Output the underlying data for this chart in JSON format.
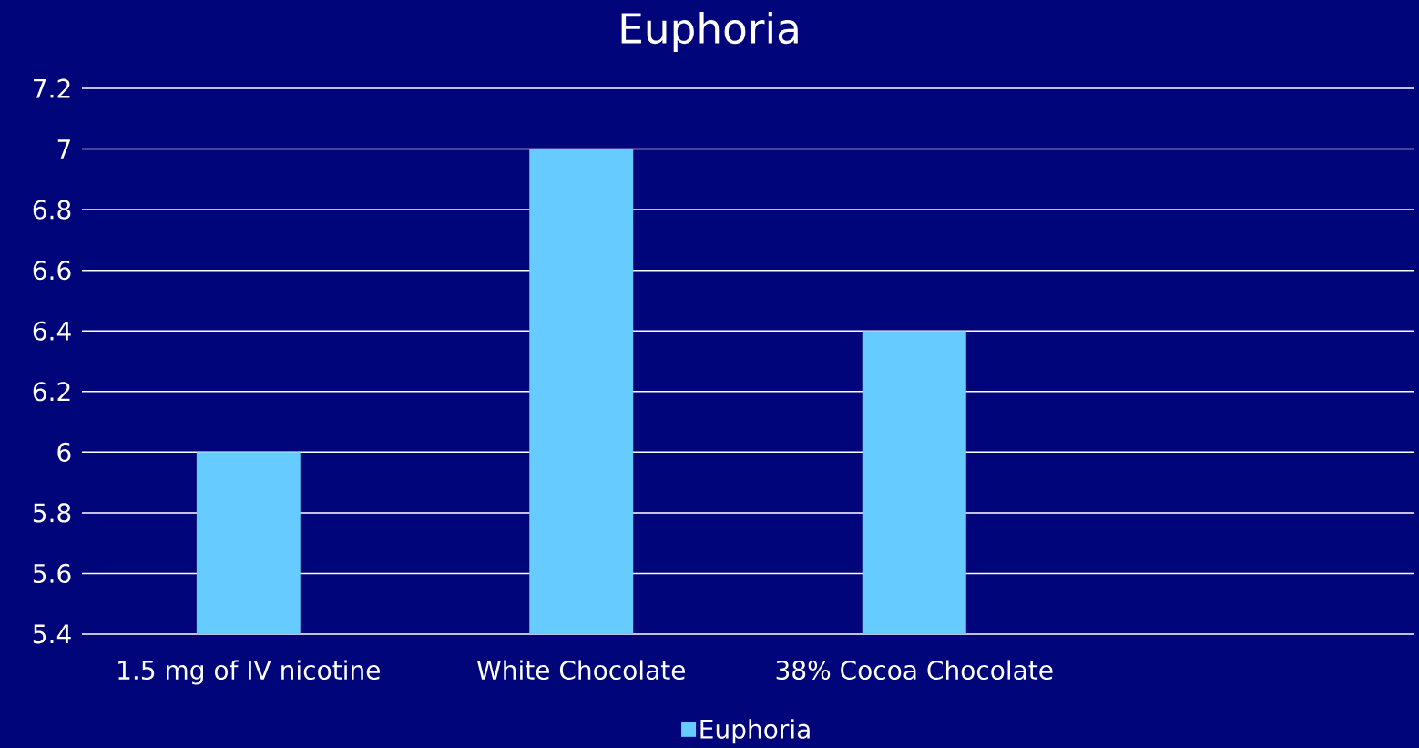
{
  "chart_data": {
    "type": "bar",
    "title": "Euphoria",
    "categories": [
      "1.5 mg of IV nicotine",
      "White Chocolate",
      "38% Cocoa Chocolate",
      null
    ],
    "series": [
      {
        "name": "Euphoria",
        "color": "#66ccff",
        "values": [
          6,
          7,
          6.4,
          null
        ]
      }
    ],
    "ylim": [
      5.4,
      7.2
    ],
    "yticks": [
      5.4,
      5.6,
      5.8,
      6,
      6.2,
      6.4,
      6.6,
      6.8,
      7,
      7.2
    ],
    "grid": "y",
    "legend": "bottom"
  }
}
